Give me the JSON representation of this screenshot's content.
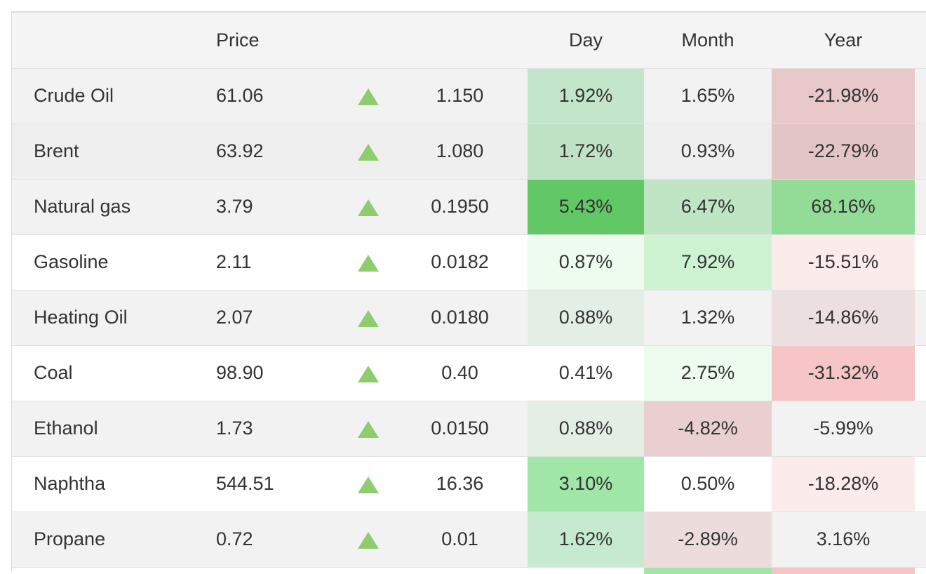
{
  "headers": {
    "price": "Price",
    "day": "Day",
    "month": "Month",
    "year": "Year"
  },
  "rows": [
    {
      "name": "Crude Oil",
      "price": "61.06",
      "arrow": "up-triangle-icon",
      "change": "1.150",
      "day": "1.92%",
      "month": "1.65%",
      "year": "-21.98%",
      "day_color": "#c3e6cb",
      "month_color": "",
      "year_color": "#e8c8c8"
    },
    {
      "name": "Brent",
      "price": "63.92",
      "arrow": "up-triangle-icon",
      "change": "1.080",
      "day": "1.72%",
      "month": "0.93%",
      "year": "-22.79%",
      "day_color": "#bfe1c4",
      "month_color": "",
      "year_color": "#e3c5c6"
    },
    {
      "name": "Natural gas",
      "price": "3.79",
      "arrow": "up-triangle-icon",
      "change": "0.1950",
      "day": "5.43%",
      "month": "6.47%",
      "year": "68.16%",
      "day_color": "#62c866",
      "month_color": "#bfe5c3",
      "year_color": "#93dc98"
    },
    {
      "name": "Gasoline",
      "price": "2.11",
      "arrow": "up-triangle-icon",
      "change": "0.0182",
      "day": "0.87%",
      "month": "7.92%",
      "year": "-15.51%",
      "day_color": "#eefbef",
      "month_color": "#cdf3d2",
      "year_color": "#fcebeb"
    },
    {
      "name": "Heating Oil",
      "price": "2.07",
      "arrow": "up-triangle-icon",
      "change": "0.0180",
      "day": "0.88%",
      "month": "1.32%",
      "year": "-14.86%",
      "day_color": "#e3efe5",
      "month_color": "",
      "year_color": "#ecdfdf"
    },
    {
      "name": "Coal",
      "price": "98.90",
      "arrow": "up-triangle-icon",
      "change": "0.40",
      "day": "0.41%",
      "month": "2.75%",
      "year": "-31.32%",
      "day_color": "",
      "month_color": "#eefbef",
      "year_color": "#f6c5c6"
    },
    {
      "name": "Ethanol",
      "price": "1.73",
      "arrow": "up-triangle-icon",
      "change": "0.0150",
      "day": "0.88%",
      "month": "-4.82%",
      "year": "-5.99%",
      "day_color": "#e3eee5",
      "month_color": "#e9cfcf",
      "year_color": ""
    },
    {
      "name": "Naphtha",
      "price": "544.51",
      "arrow": "up-triangle-icon",
      "change": "16.36",
      "day": "3.10%",
      "month": "0.50%",
      "year": "-18.28%",
      "day_color": "#9fe6a7",
      "month_color": "",
      "year_color": "#fcebeb"
    },
    {
      "name": "Propane",
      "price": "0.72",
      "arrow": "up-triangle-icon",
      "change": "0.01",
      "day": "1.62%",
      "month": "-2.89%",
      "year": "3.16%",
      "day_color": "#c6ead0",
      "month_color": "#ecdcdc",
      "year_color": ""
    }
  ],
  "colors": {
    "up_arrow": "#8fcc6e",
    "header_bg": "#f4f4f4"
  }
}
